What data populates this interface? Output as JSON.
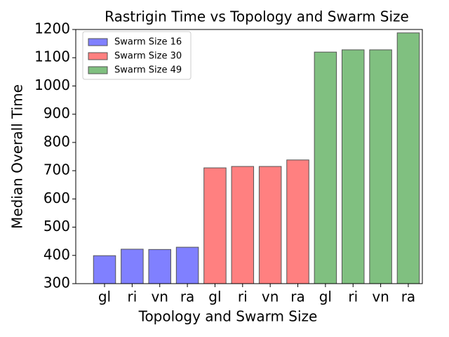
{
  "chart_data": {
    "type": "bar",
    "title": "Rastrigin Time vs Topology and Swarm Size",
    "x_label": "Topology and Swarm Size",
    "y_label": "Median Overall Time",
    "categories": [
      "gl",
      "ri",
      "vn",
      "ra",
      "gl",
      "ri",
      "vn",
      "ra",
      "gl",
      "ri",
      "vn",
      "ra"
    ],
    "series": [
      {
        "name": "Swarm Size 16",
        "color": "#8080ff",
        "values": [
          399,
          422,
          421,
          429,
          null,
          null,
          null,
          null,
          null,
          null,
          null,
          null
        ]
      },
      {
        "name": "Swarm Size 30",
        "color": "#ff8080",
        "values": [
          null,
          null,
          null,
          null,
          710,
          715,
          715,
          738,
          null,
          null,
          null,
          null
        ]
      },
      {
        "name": "Swarm Size 49",
        "color": "#80c080",
        "values": [
          null,
          null,
          null,
          null,
          null,
          null,
          null,
          null,
          1120,
          1128,
          1128,
          1188
        ]
      }
    ],
    "ylim": [
      300,
      1200
    ],
    "yticks": [
      300,
      400,
      500,
      600,
      700,
      800,
      900,
      1000,
      1100,
      1200
    ],
    "legend": "upper left",
    "grid": false
  }
}
